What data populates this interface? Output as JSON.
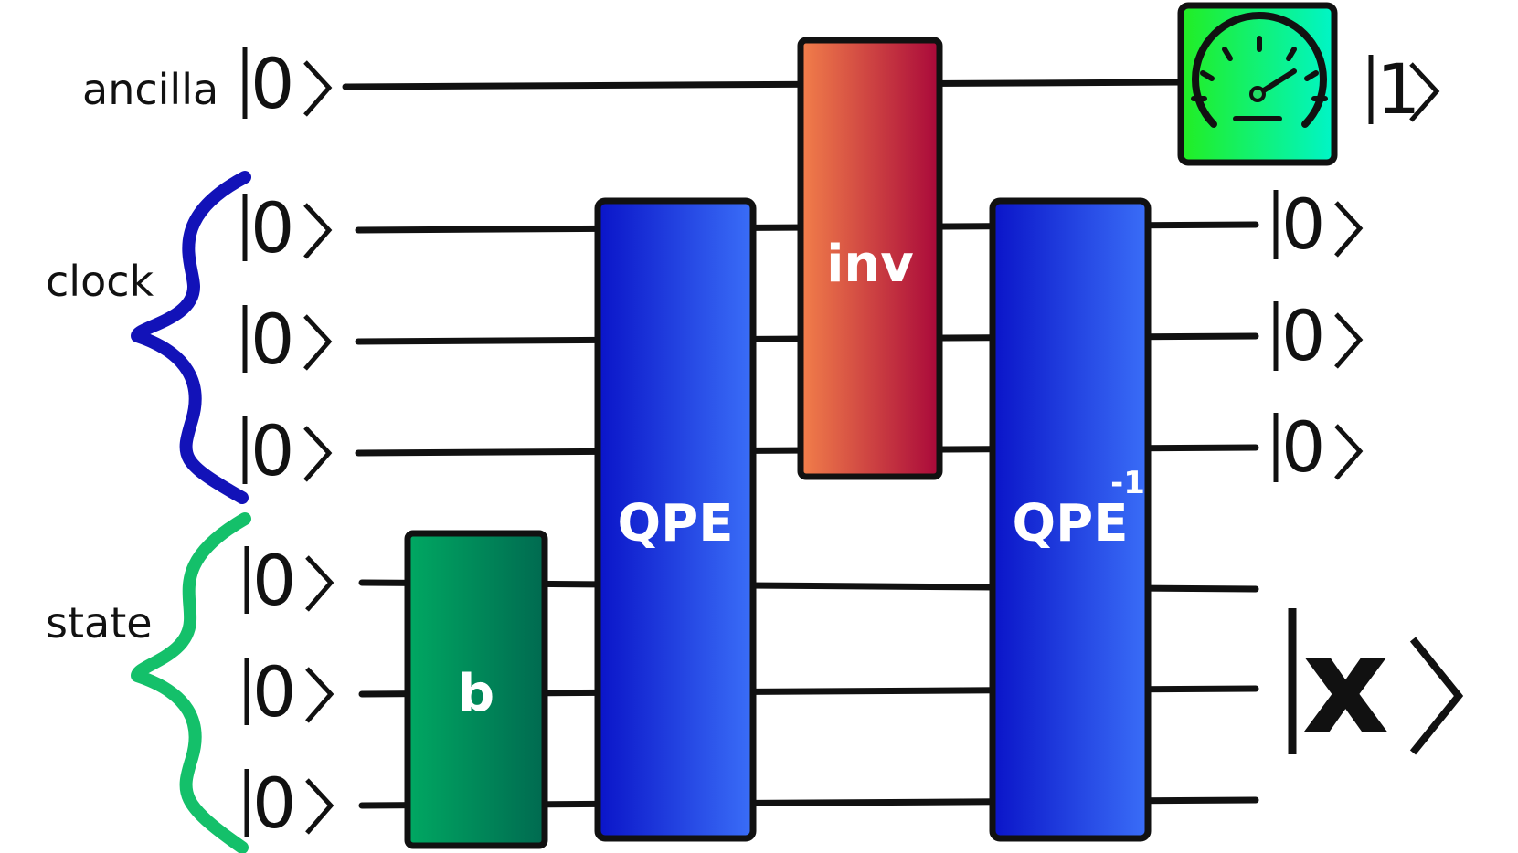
{
  "registers": {
    "ancilla_label": "ancilla",
    "clock_label": "clock",
    "state_label": "state"
  },
  "inputs": {
    "ancilla_ket": "0",
    "clock_kets": [
      "0",
      "0",
      "0"
    ],
    "state_kets": [
      "0",
      "0",
      "0"
    ]
  },
  "gates": {
    "b_label": "b",
    "qpe_label": "QPE",
    "inv_label": "inv",
    "qpe_inverse_label": "QPE",
    "qpe_inverse_superscript": "-1"
  },
  "outputs": {
    "ancilla_ket": "1",
    "clock_kets": [
      "0",
      "0",
      "0"
    ],
    "state_ket": "x"
  },
  "colors": {
    "clock_brace": "#1212b8",
    "state_brace": "#14c06a",
    "b_gate_start": "#00a862",
    "b_gate_end": "#006a50",
    "qpe_start": "#0a14c8",
    "qpe_end": "#3a6ef8",
    "inv_start": "#f27f4a",
    "inv_end": "#a9083a",
    "meter_start": "#22ee22",
    "meter_end": "#00f5c8"
  },
  "icons": {
    "measurement": "meter-gauge-icon"
  }
}
